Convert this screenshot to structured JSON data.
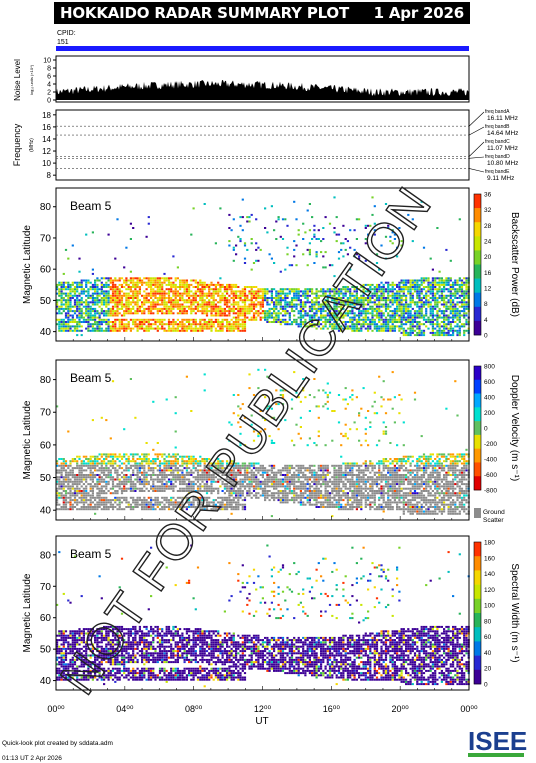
{
  "header": {
    "title": "HOKKAIDO RADAR SUMMARY PLOT",
    "date": "1 Apr 2026"
  },
  "cpid": {
    "label": "CPID:",
    "value": "151"
  },
  "watermark": "NOT FOR PUBLICATION",
  "noise_panel": {
    "ylabel": "Noise Level",
    "ylabel_sub": "log₁₀ units (×10⁴)",
    "ticks": [
      "10",
      "8",
      "6",
      "4",
      "2",
      "0"
    ]
  },
  "freq_panel": {
    "ylabel": "Frequency",
    "ylabel_sub": "(MHz)",
    "ticks": [
      "18",
      "16",
      "14",
      "12",
      "10",
      "8"
    ],
    "bands": [
      {
        "label": "freq bandA",
        "value": "16.11 MHz"
      },
      {
        "label": "freq bandB",
        "value": "14.64 MHz"
      },
      {
        "label": "freq bandC",
        "value": "11.07 MHz"
      },
      {
        "label": "freq bandD",
        "value": "10.80 MHz"
      },
      {
        "label": "freq bandE",
        "value": "9.11 MHz"
      }
    ]
  },
  "colors": {
    "accent_bar": "#1a1aff",
    "ground_scatter": "#8c8c8c",
    "header_bg": "#000000"
  },
  "panels": [
    {
      "beam": "Beam  5",
      "ylabel": "Magnetic Latitude",
      "yticks": [
        "80",
        "70",
        "60",
        "50",
        "40"
      ],
      "cbar_label": "Backscatter Power (dB)",
      "cbar_ticks": [
        "36",
        "32",
        "28",
        "24",
        "20",
        "16",
        "12",
        "8",
        "4",
        "0"
      ]
    },
    {
      "beam": "Beam  5",
      "ylabel": "Magnetic Latitude",
      "yticks": [
        "80",
        "70",
        "60",
        "50",
        "40"
      ],
      "cbar_label": "Doppler Velocity (m s⁻¹)",
      "cbar_ticks": [
        "800",
        "600",
        "400",
        "200",
        "0",
        "-200",
        "-400",
        "-600",
        "-800"
      ],
      "ground_label_1": "Ground",
      "ground_label_2": "Scatter"
    },
    {
      "beam": "Beam  5",
      "ylabel": "Magnetic Latitude",
      "yticks": [
        "80",
        "70",
        "60",
        "50",
        "40"
      ],
      "cbar_label": "Spectral Width (m s⁻¹)",
      "cbar_ticks": [
        "180",
        "160",
        "140",
        "120",
        "100",
        "80",
        "60",
        "40",
        "20",
        "0"
      ]
    }
  ],
  "xaxis": {
    "label": "UT",
    "ticks": [
      "00⁰⁰",
      "04⁰⁰",
      "08⁰⁰",
      "12⁰⁰",
      "16⁰⁰",
      "20⁰⁰",
      "00⁰⁰"
    ]
  },
  "footer": {
    "line1": "Quick-look plot created by sddata.adm",
    "line2": "01:13 UT  2 Apr 2026",
    "logo": "ISEE"
  },
  "chart_data": {
    "type": "heatmap",
    "title": "HOKKAIDO RADAR SUMMARY PLOT",
    "x_label": "UT",
    "x_range_hours": [
      0,
      24
    ],
    "y_label": "Magnetic Latitude",
    "y_range": [
      37,
      86
    ],
    "series": [
      {
        "name": "Backscatter Power (dB)",
        "range": [
          0,
          36
        ]
      },
      {
        "name": "Doppler Velocity (m s⁻¹)",
        "range": [
          -800,
          800
        ]
      },
      {
        "name": "Spectral Width (m s⁻¹)",
        "range": [
          0,
          180
        ]
      }
    ],
    "noise_range": [
      0,
      10
    ],
    "freq_range_mhz": [
      8,
      18
    ]
  }
}
